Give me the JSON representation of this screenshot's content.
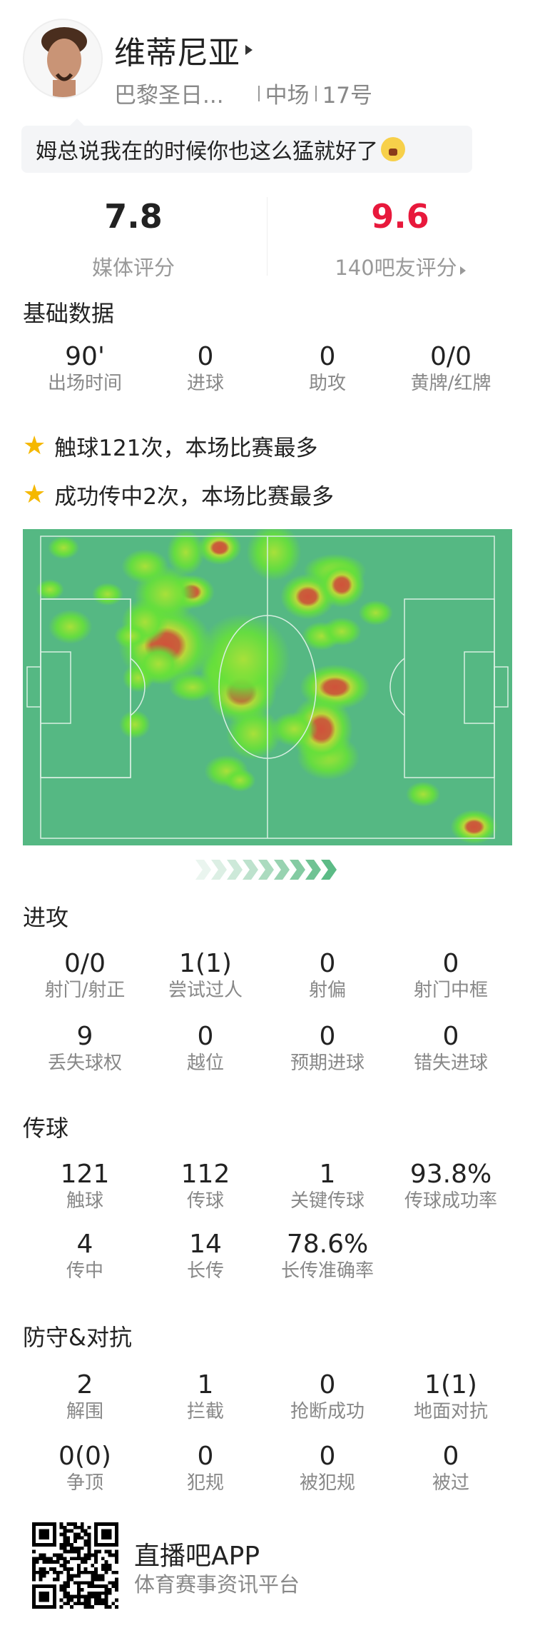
{
  "player": {
    "name": "维蒂尼亚",
    "team": "巴黎圣日...",
    "position": "中场",
    "number": "17号",
    "comment": "姆总说我在的时候你也这么猛就好了"
  },
  "ratings": {
    "media_value": "7.8",
    "media_label": "媒体评分",
    "fan_value": "9.6",
    "fan_label": "140吧友评分",
    "fan_color": "#e8193c"
  },
  "basic": {
    "title": "基础数据",
    "stats": [
      {
        "v": "90'",
        "l": "出场时间"
      },
      {
        "v": "0",
        "l": "进球"
      },
      {
        "v": "0",
        "l": "助攻"
      },
      {
        "v": "0/0",
        "l": "黄牌/红牌"
      }
    ]
  },
  "highlights": [
    "触球121次，本场比赛最多",
    "成功传中2次，本场比赛最多"
  ],
  "heatmap": {
    "pitch_color": "#55b883",
    "direction": "right"
  },
  "attack": {
    "title": "进攻",
    "rows": [
      [
        {
          "v": "0/0",
          "l": "射门/射正"
        },
        {
          "v": "1(1)",
          "l": "尝试过人"
        },
        {
          "v": "0",
          "l": "射偏"
        },
        {
          "v": "0",
          "l": "射门中框"
        }
      ],
      [
        {
          "v": "9",
          "l": "丢失球权"
        },
        {
          "v": "0",
          "l": "越位"
        },
        {
          "v": "0",
          "l": "预期进球"
        },
        {
          "v": "0",
          "l": "错失进球"
        }
      ]
    ]
  },
  "passing": {
    "title": "传球",
    "rows": [
      [
        {
          "v": "121",
          "l": "触球"
        },
        {
          "v": "112",
          "l": "传球"
        },
        {
          "v": "1",
          "l": "关键传球"
        },
        {
          "v": "93.8%",
          "l": "传球成功率"
        }
      ],
      [
        {
          "v": "4",
          "l": "传中"
        },
        {
          "v": "14",
          "l": "长传"
        },
        {
          "v": "78.6%",
          "l": "长传准确率"
        }
      ]
    ]
  },
  "defense": {
    "title": "防守&对抗",
    "rows": [
      [
        {
          "v": "2",
          "l": "解围"
        },
        {
          "v": "1",
          "l": "拦截"
        },
        {
          "v": "0",
          "l": "抢断成功"
        },
        {
          "v": "1(1)",
          "l": "地面对抗"
        }
      ],
      [
        {
          "v": "0(0)",
          "l": "争顶"
        },
        {
          "v": "0",
          "l": "犯规"
        },
        {
          "v": "0",
          "l": "被犯规"
        },
        {
          "v": "0",
          "l": "被过"
        }
      ]
    ]
  },
  "footer": {
    "app": "直播吧APP",
    "tagline": "体育赛事资讯平台"
  }
}
